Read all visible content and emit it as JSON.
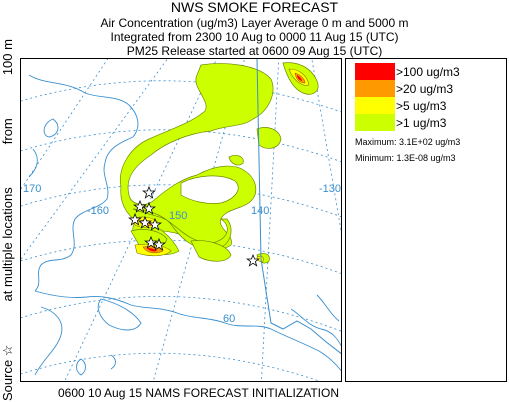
{
  "header": {
    "title": "NWS SMOKE FORECAST",
    "line1": "Air Concentration (ug/m3) Layer Average    0 m and  5000 m",
    "line2": "Integrated from 2300 10 Aug to 0000 11 Aug 15 (UTC)",
    "line3": "PM25 Release started at 0600 09 Aug 15 (UTC)"
  },
  "side_label": {
    "source": "Source ☆",
    "locations": "at multiple locations",
    "from": "from",
    "height": "100 m"
  },
  "map": {
    "grid_labels": {
      "lon_170": "170",
      "lon_160": "-160",
      "lon_150": "150",
      "lon_140": "140",
      "lon_130": "-130",
      "lat_60": "60"
    },
    "colors": {
      "coast": "#3a8fcf",
      "border": "#3a8fcf",
      "grid": "#3a8fcf",
      "smoke_gt1": "#ccff00",
      "smoke_gt5": "#ffff00",
      "smoke_gt20": "#ff9900",
      "smoke_gt100": "#ff0000"
    }
  },
  "legend": {
    "entries": [
      {
        "label": ">100 ug/m3",
        "color": "#ff0000"
      },
      {
        "label": ">20 ug/m3",
        "color": "#ff9900"
      },
      {
        "label": ">5 ug/m3",
        "color": "#ffff00"
      },
      {
        "label": ">1 ug/m3",
        "color": "#ccff00"
      }
    ],
    "maximum": "Maximum: 3.1E+02 ug/m3",
    "minimum": "Minimum: 1.3E-08 ug/m3"
  },
  "footer": "0600 10 Aug 15 NAMS FORECAST INITIALIZATION"
}
